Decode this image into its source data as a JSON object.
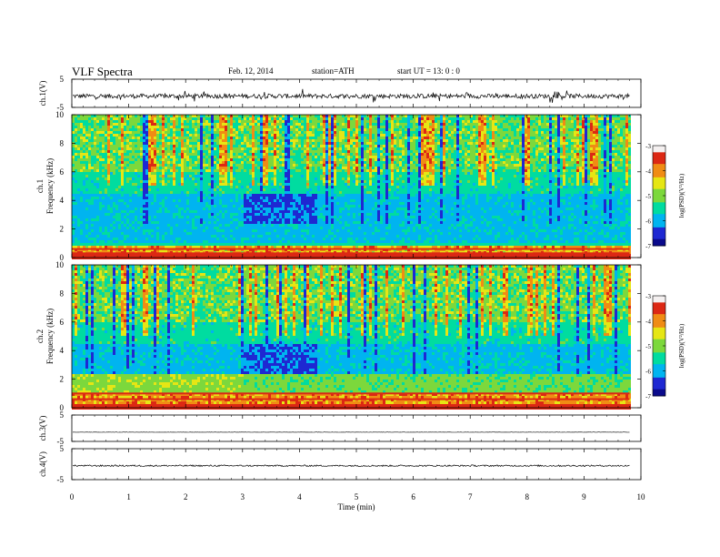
{
  "header": {
    "title": "VLF  Spectra",
    "date": "Feb. 12, 2014",
    "station": "station=ATH",
    "start_ut": "start  UT  =    13: 0   : 0"
  },
  "colors": {
    "trace": "#000000",
    "colormap": [
      "#0a0a8c",
      "#1e28d2",
      "#00b4f0",
      "#00dca0",
      "#7cd83c",
      "#e6e614",
      "#f08c14",
      "#dc2814",
      "#f4f0f0"
    ]
  },
  "chart_data": [
    {
      "type": "line",
      "panel": "ch1-waveform",
      "ylabel": "ch.1(V)",
      "ylim": [
        -5,
        5
      ],
      "yticks": [
        "5",
        "-5"
      ],
      "xlim": [
        0,
        10
      ],
      "baseline": -1,
      "noise_amplitude": 0.8
    },
    {
      "type": "heatmap",
      "panel": "ch1-spectrogram",
      "ylabel": "ch.1\nFrequency  (kHz)",
      "ylim": [
        0,
        10
      ],
      "yticks": [
        "0",
        "2",
        "4",
        "6",
        "8",
        "10"
      ],
      "xlim": [
        0,
        10
      ],
      "data_end_min": 9.8,
      "colorbar": {
        "label": "log(PSD)(V²/Hz)",
        "range": [
          -7,
          -3
        ],
        "ticks": [
          "-3",
          "-4",
          "-5",
          "-6",
          "-7"
        ]
      }
    },
    {
      "type": "heatmap",
      "panel": "ch2-spectrogram",
      "ylabel": "ch.2\nFrequency  (kHz)",
      "ylim": [
        0,
        10
      ],
      "yticks": [
        "0",
        "2",
        "4",
        "6",
        "8",
        "10"
      ],
      "xlim": [
        0,
        10
      ],
      "data_end_min": 9.8,
      "colorbar": {
        "label": "log(PSD)(V²/Hz)",
        "range": [
          -7,
          -3
        ],
        "ticks": [
          "-3",
          "-4",
          "-5",
          "-6",
          "-7"
        ]
      }
    },
    {
      "type": "line",
      "panel": "ch3-waveform",
      "ylabel": "ch.3(V)",
      "ylim": [
        -5,
        5
      ],
      "yticks": [
        "5",
        "-5"
      ],
      "xlim": [
        0,
        10
      ],
      "baseline": -1.5,
      "noise_amplitude": 0.05
    },
    {
      "type": "line",
      "panel": "ch4-waveform",
      "ylabel": "ch.4(V)",
      "ylim": [
        -5,
        5
      ],
      "yticks": [
        "5",
        "-5"
      ],
      "xlim": [
        0,
        10
      ],
      "baseline": -0.5,
      "noise_amplitude": 0.25
    }
  ],
  "x_axis": {
    "label": "Time  (min)",
    "ticks": [
      "0",
      "1",
      "2",
      "3",
      "4",
      "5",
      "6",
      "7",
      "8",
      "9",
      "10"
    ]
  }
}
